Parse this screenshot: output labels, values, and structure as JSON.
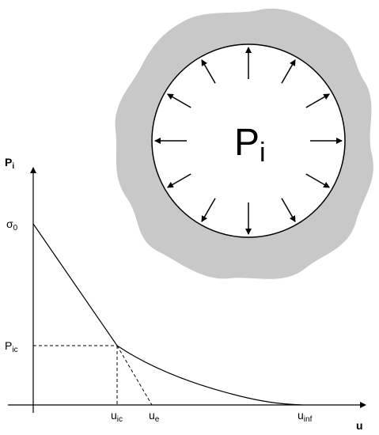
{
  "circle_label": {
    "main": "P",
    "sub": "i"
  },
  "axes": {
    "y_label": {
      "main": "P",
      "sub": "i"
    },
    "x_label": "u"
  },
  "markers": [
    {
      "main": "σ",
      "sub": "0"
    },
    {
      "main": "P",
      "sub": "ic"
    },
    {
      "main": "u",
      "sub": "ic"
    },
    {
      "main": "u",
      "sub": "e"
    },
    {
      "main": "u",
      "sub": "inf"
    }
  ]
}
